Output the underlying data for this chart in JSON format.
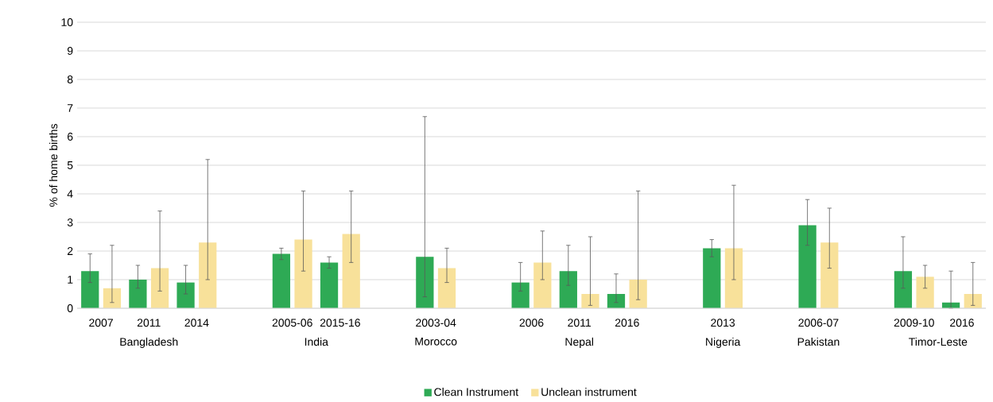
{
  "chart_data": {
    "type": "bar",
    "ylabel": "% of home births",
    "categories": [
      "2007",
      "2011",
      "2014",
      null,
      "2005-06",
      "2015-16",
      null,
      "2003-04",
      null,
      "2006",
      "2011",
      "2016",
      null,
      "2013",
      null,
      "2006-07",
      null,
      "2009-10",
      "2016"
    ],
    "series": [
      {
        "name": "Clean Instrument",
        "color": "#2eaa55",
        "values": [
          1.3,
          1.0,
          0.9,
          null,
          1.9,
          1.6,
          null,
          1.8,
          null,
          0.9,
          1.3,
          0.5,
          null,
          2.1,
          null,
          2.9,
          null,
          1.3,
          0.2
        ],
        "errors": [
          [
            0.9,
            1.9
          ],
          [
            0.7,
            1.5
          ],
          [
            0.5,
            1.5
          ],
          null,
          [
            1.7,
            2.1
          ],
          [
            1.4,
            1.8
          ],
          null,
          [
            0.4,
            6.7
          ],
          null,
          [
            0.6,
            1.6
          ],
          [
            0.8,
            2.2
          ],
          [
            0.2,
            1.2
          ],
          null,
          [
            1.8,
            2.4
          ],
          null,
          [
            2.2,
            3.8
          ],
          null,
          [
            0.7,
            2.5
          ],
          [
            0.0,
            1.3
          ]
        ]
      },
      {
        "name": "Unclean instrument",
        "color": "#f8e19a",
        "values": [
          0.7,
          1.4,
          2.3,
          null,
          2.4,
          2.6,
          null,
          1.4,
          null,
          1.6,
          0.5,
          1.0,
          null,
          2.1,
          null,
          2.3,
          null,
          1.1,
          0.5
        ],
        "errors": [
          [
            0.2,
            2.2
          ],
          [
            0.6,
            3.4
          ],
          [
            1.0,
            5.2
          ],
          null,
          [
            1.3,
            4.1
          ],
          [
            1.6,
            4.1
          ],
          null,
          [
            0.9,
            2.1
          ],
          null,
          [
            1.0,
            2.7
          ],
          [
            0.1,
            2.5
          ],
          [
            0.3,
            4.1
          ],
          null,
          [
            1.0,
            4.3
          ],
          null,
          [
            1.4,
            3.5
          ],
          null,
          [
            0.7,
            1.5
          ],
          [
            0.1,
            1.6
          ]
        ]
      }
    ],
    "annotations": [
      "Bangladesh",
      "India",
      "Morocco",
      "Nepal",
      "Nigeria",
      "Pakistan",
      "Timor-Leste"
    ],
    "ylim": [
      0,
      10
    ],
    "yticks": [
      0,
      1,
      2,
      3,
      4,
      5,
      6,
      7,
      8,
      9,
      10
    ],
    "grid": "y",
    "legend": "bottom"
  }
}
